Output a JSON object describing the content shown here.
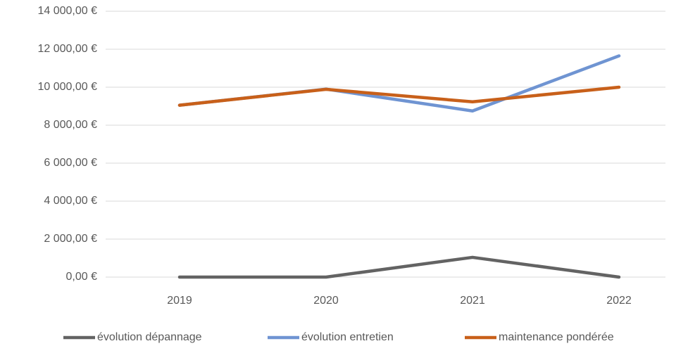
{
  "chart_data": {
    "type": "line",
    "categories": [
      "2019",
      "2020",
      "2021",
      "2022"
    ],
    "series": [
      {
        "name": "évolution dépannage",
        "color": "#636363",
        "values": [
          0,
          0,
          1040,
          0
        ]
      },
      {
        "name": "évolution entretien",
        "color": "#6f94d2",
        "values": [
          9050,
          9900,
          8750,
          11650
        ]
      },
      {
        "name": "maintenance pondérée",
        "color": "#c8601a",
        "values": [
          9050,
          9890,
          9230,
          10000
        ]
      }
    ],
    "ylim": [
      0,
      14000
    ],
    "yticks": [
      {
        "value": 0,
        "label": "0,00 €"
      },
      {
        "value": 2000,
        "label": "2 000,00 €"
      },
      {
        "value": 4000,
        "label": "4 000,00 €"
      },
      {
        "value": 6000,
        "label": "6 000,00 €"
      },
      {
        "value": 8000,
        "label": "8 000,00 €"
      },
      {
        "value": 10000,
        "label": "10 000,00 €"
      },
      {
        "value": 12000,
        "label": "12 000,00 €"
      },
      {
        "value": 14000,
        "label": "14 000,00 €"
      }
    ],
    "grid": true,
    "legend": "bottom"
  }
}
